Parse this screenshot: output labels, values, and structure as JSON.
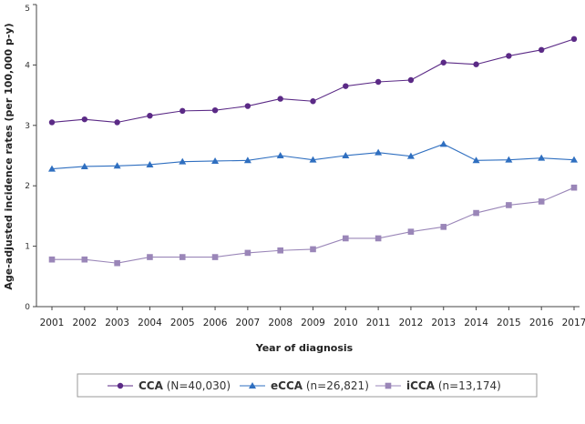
{
  "chart_data": {
    "type": "line",
    "title": "",
    "xlabel": "Year of diagnosis",
    "ylabel": "Age-adjusted incidence rates (per 100,000 p-y)",
    "ylim": [
      0,
      5
    ],
    "yticks": [
      0,
      1,
      2,
      3,
      4,
      5
    ],
    "grid": false,
    "legend_position": "bottom",
    "x": [
      "2001",
      "2002",
      "2003",
      "2004",
      "2005",
      "2006",
      "2007",
      "2008",
      "2009",
      "2010",
      "2011",
      "2012",
      "2013",
      "2014",
      "2015",
      "2016",
      "2017"
    ],
    "series": [
      {
        "name": "CCA",
        "name_suffix": " (N=40,030)",
        "color": "#5b2a86",
        "marker": "circle",
        "values": [
          3.05,
          3.1,
          3.05,
          3.16,
          3.24,
          3.25,
          3.32,
          3.44,
          3.4,
          3.65,
          3.72,
          3.75,
          4.04,
          4.01,
          4.15,
          4.25,
          4.43
        ]
      },
      {
        "name": "eCCA",
        "name_suffix": " (n=26,821)",
        "color": "#2f6fc0",
        "marker": "triangle",
        "values": [
          2.28,
          2.32,
          2.33,
          2.35,
          2.4,
          2.41,
          2.42,
          2.5,
          2.43,
          2.5,
          2.55,
          2.49,
          2.69,
          2.42,
          2.43,
          2.46,
          2.43
        ]
      },
      {
        "name": "iCCA",
        "name_suffix": " (n=13,174)",
        "color": "#9a86b8",
        "marker": "square",
        "values": [
          0.78,
          0.78,
          0.72,
          0.82,
          0.82,
          0.82,
          0.89,
          0.93,
          0.95,
          1.13,
          1.13,
          1.24,
          1.32,
          1.55,
          1.68,
          1.74,
          1.97
        ]
      }
    ]
  }
}
